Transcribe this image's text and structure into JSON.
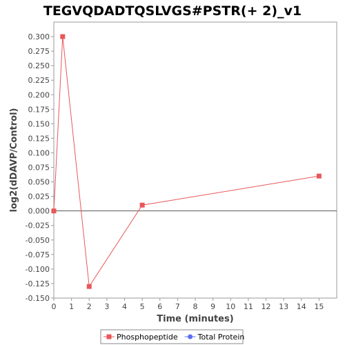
{
  "chart_data": {
    "type": "line",
    "title": "TEGVQDADTQSLVGS#PSTR(+ 2)_v1",
    "xlabel": "Time (minutes)",
    "ylabel": "log2(dDAVP/Control)",
    "xlim": [
      0,
      16
    ],
    "ylim": [
      -0.15,
      0.325
    ],
    "x_ticks": [
      0,
      1,
      2,
      3,
      4,
      5,
      6,
      7,
      8,
      9,
      10,
      11,
      12,
      13,
      14,
      15
    ],
    "y_ticks": [
      -0.15,
      -0.125,
      -0.1,
      -0.075,
      -0.05,
      -0.025,
      0.0,
      0.025,
      0.05,
      0.075,
      0.1,
      0.125,
      0.15,
      0.175,
      0.2,
      0.225,
      0.25,
      0.275,
      0.3
    ],
    "y_tick_labels": [
      "-0.150",
      "-0.125",
      "-0.100",
      "-0.075",
      "-0.050",
      "-0.025",
      "0.000",
      "0.025",
      "0.050",
      "0.075",
      "0.100",
      "0.125",
      "0.150",
      "0.175",
      "0.200",
      "0.225",
      "0.250",
      "0.275",
      "0.300"
    ],
    "grid": false,
    "zero_line": true,
    "legend_position": "bottom",
    "series": [
      {
        "name": "Phosphopeptide",
        "color": "#e8575a",
        "marker": "square",
        "x": [
          0,
          0.5,
          2,
          5,
          15
        ],
        "y": [
          0.0,
          0.3,
          -0.13,
          0.01,
          0.06
        ]
      },
      {
        "name": "Total Protein",
        "color": "#5b6ef2",
        "marker": "circle",
        "x": [],
        "y": []
      }
    ]
  }
}
